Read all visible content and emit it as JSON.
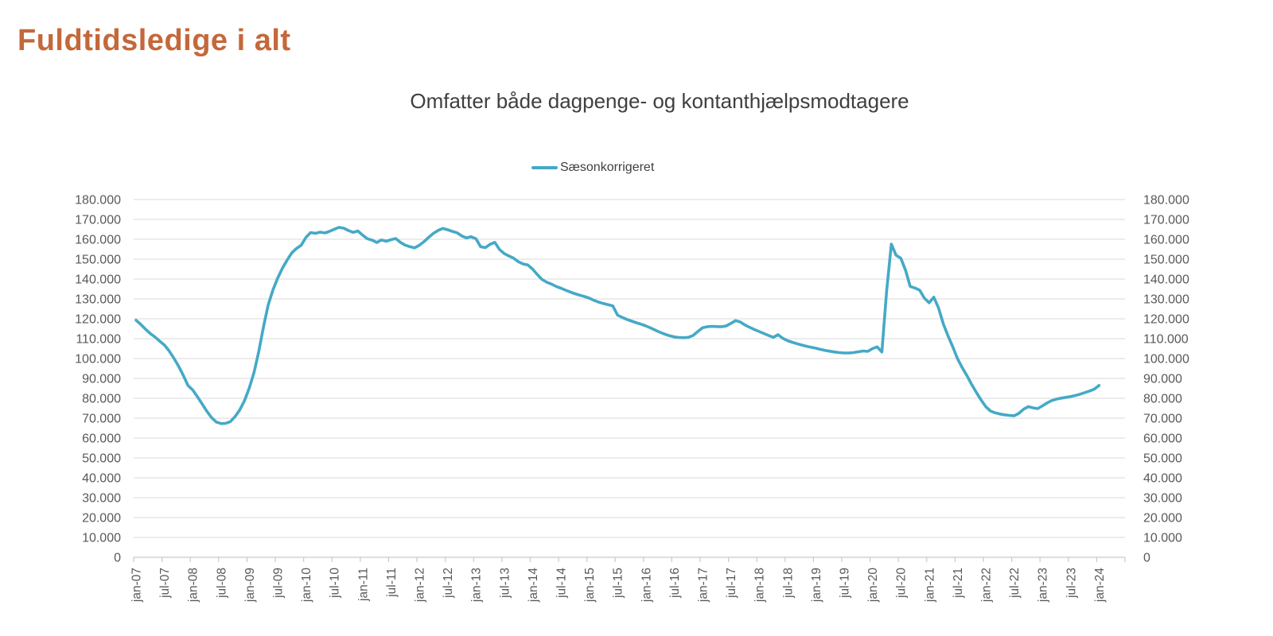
{
  "page": {
    "title": "Fuldtidsledige i alt"
  },
  "colors": {
    "title": "#C4683A",
    "grid": "#D9D9D9",
    "axis_line": "#C9C9C9",
    "axis_text": "#595959",
    "subtitle_text": "#3F3F3F",
    "legend_text": "#404040",
    "background": "#FFFFFF"
  },
  "chart_data": {
    "type": "line",
    "title": "Omfatter både dagpenge- og kontanthjælpsmodtagere",
    "xlabel": "",
    "ylabel": "",
    "ylim": [
      0,
      180000
    ],
    "grid": "horizontal",
    "legend_position": "top-center",
    "x_start": "jan-07",
    "x_frequency": "monthly",
    "x_tick_labels": [
      "jan-07",
      "jul-07",
      "jan-08",
      "jul-08",
      "jan-09",
      "jul-09",
      "jan-10",
      "jul-10",
      "jan-11",
      "jul-11",
      "jan-12",
      "jul-12",
      "jan-13",
      "jul-13",
      "jan-14",
      "jul-14",
      "jan-15",
      "jul-15",
      "jan-16",
      "jul-16",
      "jan-17",
      "jul-17",
      "jan-18",
      "jul-18",
      "jan-19",
      "jul-19",
      "jan-20",
      "jul-20",
      "jan-21",
      "jul-21",
      "jan-22",
      "jul-22",
      "jan-23",
      "jul-23",
      "jan-24"
    ],
    "y_tick_labels": [
      "0",
      "10.000",
      "20.000",
      "30.000",
      "40.000",
      "50.000",
      "60.000",
      "70.000",
      "80.000",
      "90.000",
      "100.000",
      "110.000",
      "120.000",
      "130.000",
      "140.000",
      "150.000",
      "160.000",
      "170.000",
      "180.000"
    ],
    "series": [
      {
        "name": "Sæsonkorrigeret",
        "color": "#45A9C6",
        "values": [
          119300,
          117200,
          114800,
          112600,
          110900,
          108800,
          106800,
          103900,
          100300,
          96200,
          91600,
          86500,
          84200,
          80800,
          77200,
          73500,
          70300,
          68100,
          67300,
          67400,
          68300,
          70900,
          74300,
          78900,
          85300,
          93000,
          103500,
          116000,
          127000,
          134500,
          140500,
          145400,
          149500,
          153200,
          155400,
          157000,
          161000,
          163400,
          163000,
          163600,
          163200,
          164000,
          165100,
          166000,
          165600,
          164400,
          163500,
          164200,
          162100,
          160300,
          159600,
          158400,
          159700,
          159000,
          159800,
          160400,
          158500,
          157100,
          156300,
          155700,
          157000,
          158800,
          161000,
          163000,
          164500,
          165500,
          164800,
          164000,
          163300,
          161700,
          160700,
          161300,
          160300,
          156300,
          155800,
          157500,
          158500,
          154900,
          152800,
          151600,
          150500,
          148700,
          147600,
          147100,
          145000,
          142300,
          139800,
          138400,
          137500,
          136300,
          135400,
          134400,
          133500,
          132600,
          131900,
          131200,
          130400,
          129300,
          128400,
          127700,
          127100,
          126500,
          121900,
          120700,
          119700,
          118800,
          118000,
          117300,
          116400,
          115400,
          114300,
          113200,
          112300,
          111500,
          110900,
          110600,
          110500,
          110700,
          111600,
          113600,
          115500,
          116000,
          116200,
          116100,
          116000,
          116400,
          117700,
          119100,
          118400,
          116900,
          115700,
          114600,
          113600,
          112600,
          111600,
          110700,
          112000,
          110200,
          109000,
          108200,
          107500,
          106800,
          106200,
          105700,
          105200,
          104600,
          104100,
          103700,
          103300,
          103000,
          102800,
          102800,
          103000,
          103400,
          103800,
          103600,
          105000,
          105900,
          103300,
          134000,
          157600,
          152000,
          150500,
          144500,
          136300,
          135500,
          134400,
          130400,
          128100,
          130900,
          125500,
          117500,
          111500,
          106000,
          100000,
          95500,
          91500,
          87000,
          83000,
          79200,
          75800,
          73600,
          72700,
          72100,
          71700,
          71400,
          71200,
          72400,
          74500,
          75800,
          75200,
          74800,
          76200,
          77700,
          78900,
          79600,
          80100,
          80500,
          80900,
          81400,
          82100,
          82900,
          83700,
          84600,
          86500
        ]
      }
    ]
  }
}
